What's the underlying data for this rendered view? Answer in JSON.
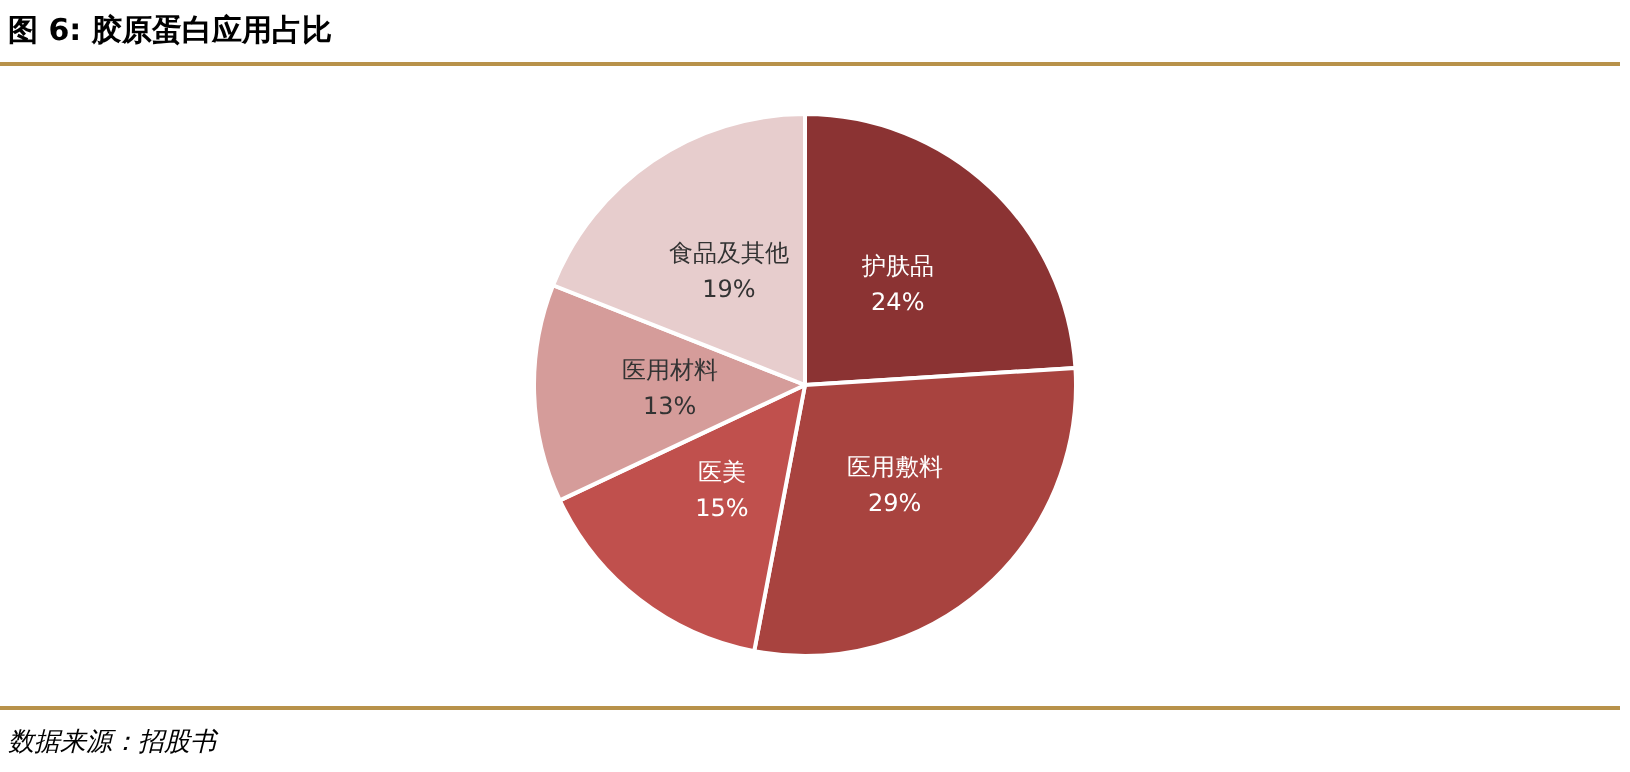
{
  "chart_data": {
    "type": "pie",
    "title": "图 6: 胶原蛋白应用占比",
    "categories": [
      "护肤品",
      "医用敷料",
      "医美",
      "医用材料",
      "食品及其他"
    ],
    "values": [
      24,
      29,
      15,
      13,
      19
    ],
    "colors": [
      "#8b3333",
      "#a8433f",
      "#c0504d",
      "#d59c9a",
      "#e7cdcd"
    ],
    "value_labels": [
      "24%",
      "29%",
      "15%",
      "13%",
      "19%"
    ],
    "legend": false,
    "annotations": [
      "数据来源：招股书"
    ]
  }
}
